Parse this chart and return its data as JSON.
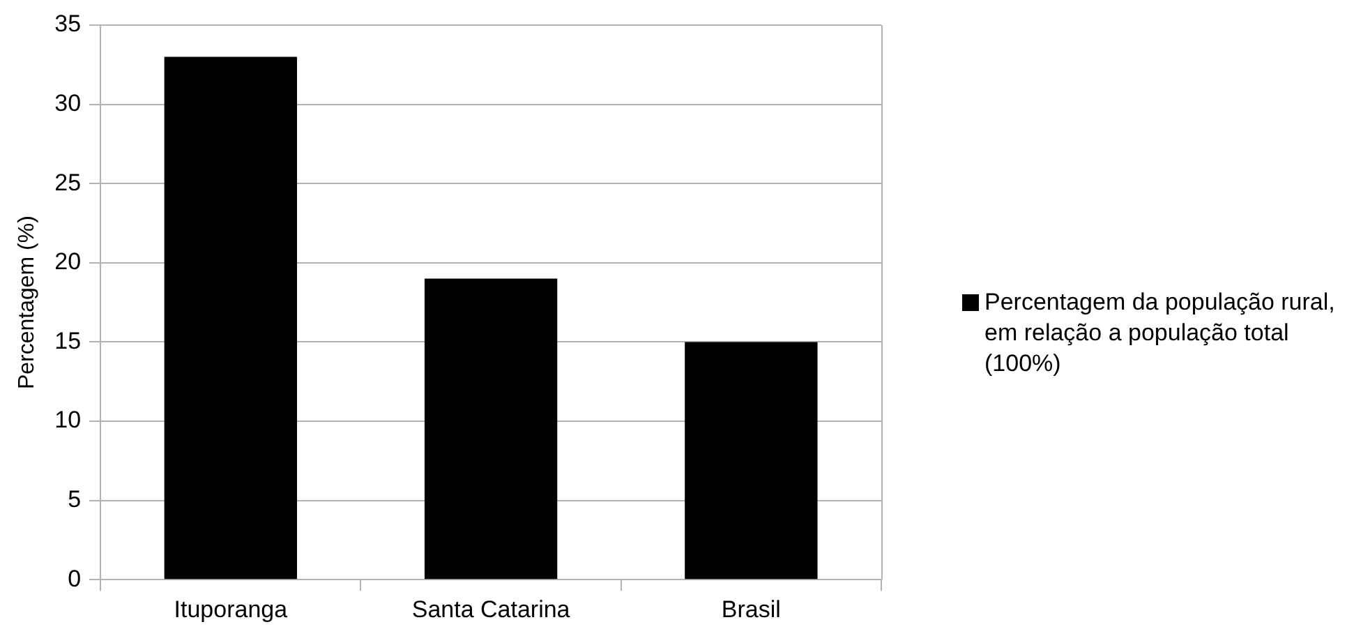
{
  "chart_data": {
    "type": "bar",
    "ylabel": "Percentagem (%)",
    "categories": [
      "Ituporanga",
      "Santa Catarina",
      "Brasil"
    ],
    "series": [
      {
        "name": "Percentagem da população rural, em relação a população total (100%)",
        "color": "#000000",
        "values": [
          33,
          19,
          15
        ]
      }
    ],
    "ylim": [
      0,
      35
    ],
    "yticks": [
      0,
      5,
      10,
      15,
      20,
      25,
      30,
      35
    ],
    "grid": "y",
    "legend": "right"
  }
}
